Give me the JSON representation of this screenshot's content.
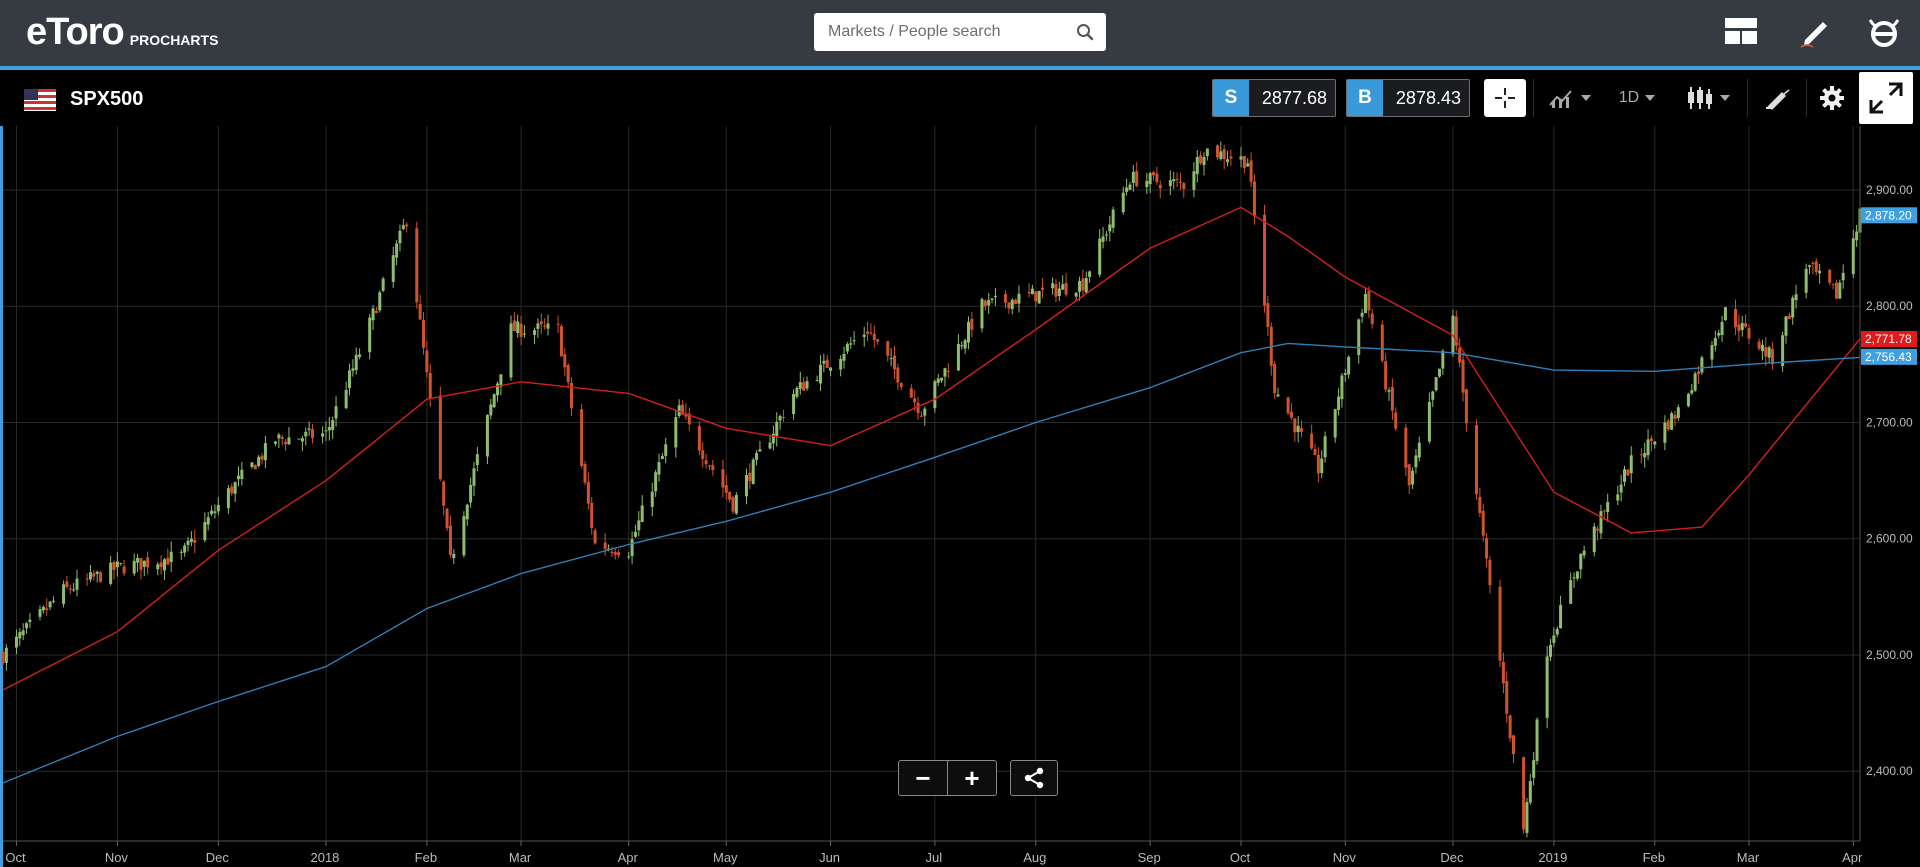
{
  "brand": {
    "logo_text": "eToro",
    "product": "PROCHARTS"
  },
  "search": {
    "placeholder": "Markets / People search",
    "value": ""
  },
  "header_icons": [
    "layout-icon",
    "edit-pencil-icon",
    "etoro-app-icon"
  ],
  "instrument": {
    "symbol": "SPX500",
    "flag": "us-flag-icon"
  },
  "sell": {
    "tag": "S",
    "price": "2877.68"
  },
  "buy": {
    "tag": "B",
    "price": "2878.43"
  },
  "toolbar": {
    "timeframe": "1D",
    "icons": [
      "crosshair-icon",
      "indicators-icon",
      "candlestick-icon",
      "drawing-tools-icon",
      "settings-gear-icon",
      "fullscreen-icon"
    ]
  },
  "zoom": {
    "minus": "−",
    "plus": "+",
    "share_icon": "share-icon"
  },
  "colors": {
    "accent": "#3ea0e0",
    "bull": "#8fbc6f",
    "bear": "#d0532f",
    "ma_short": "#d21f1f",
    "ma_long": "#2f7fb8",
    "topbar": "#363b42"
  },
  "chart_data": {
    "type": "line",
    "title": "",
    "candlestick": true,
    "grid": true,
    "ylim": [
      2340,
      2955
    ],
    "y_ticks": [
      "2,400.00",
      "2,500.00",
      "2,600.00",
      "2,700.00",
      "2,800.00",
      "2,900.00"
    ],
    "y_tick_values": [
      2400,
      2500,
      2600,
      2700,
      2800,
      2900
    ],
    "x_ticks": [
      "Oct",
      "Nov",
      "Dec",
      "2018",
      "Feb",
      "Mar",
      "Apr",
      "May",
      "Jun",
      "Jul",
      "Aug",
      "Sep",
      "Oct",
      "Nov",
      "Dec",
      "2019",
      "Feb",
      "Mar",
      "Apr"
    ],
    "x_tick_dates": [
      "2017-10-02",
      "2017-11-01",
      "2017-12-01",
      "2018-01-02",
      "2018-02-01",
      "2018-03-01",
      "2018-04-02",
      "2018-05-01",
      "2018-06-01",
      "2018-07-02",
      "2018-08-01",
      "2018-09-04",
      "2018-10-01",
      "2018-11-01",
      "2018-12-03",
      "2019-01-02",
      "2019-02-01",
      "2019-03-01",
      "2019-04-01"
    ],
    "date_range": [
      "2017-09-28",
      "2019-04-03"
    ],
    "close_series": {
      "name": "SPX500",
      "dates": [
        "2017-09-28",
        "2017-10-16",
        "2017-11-01",
        "2017-11-20",
        "2017-12-04",
        "2017-12-18",
        "2018-01-02",
        "2018-01-12",
        "2018-01-26",
        "2018-02-08",
        "2018-02-26",
        "2018-03-12",
        "2018-03-23",
        "2018-04-02",
        "2018-04-17",
        "2018-05-03",
        "2018-05-21",
        "2018-06-12",
        "2018-06-28",
        "2018-07-16",
        "2018-08-01",
        "2018-08-15",
        "2018-08-29",
        "2018-09-14",
        "2018-09-20",
        "2018-10-03",
        "2018-10-11",
        "2018-10-24",
        "2018-11-07",
        "2018-11-20",
        "2018-12-03",
        "2018-12-10",
        "2018-12-24",
        "2018-12-31",
        "2019-01-10",
        "2019-01-25",
        "2019-02-08",
        "2019-02-22",
        "2019-03-08",
        "2019-03-18",
        "2019-03-27",
        "2019-04-03"
      ],
      "values": [
        2500,
        2555,
        2575,
        2585,
        2640,
        2685,
        2690,
        2760,
        2875,
        2580,
        2780,
        2780,
        2595,
        2590,
        2710,
        2630,
        2725,
        2780,
        2710,
        2800,
        2810,
        2820,
        2910,
        2905,
        2935,
        2925,
        2730,
        2660,
        2810,
        2645,
        2790,
        2640,
        2350,
        2505,
        2585,
        2665,
        2710,
        2795,
        2755,
        2835,
        2810,
        2880
      ]
    },
    "series": [
      {
        "name": "",
        "color": "#d21f1f",
        "dates": [
          "2017-09-28",
          "2017-11-01",
          "2017-12-01",
          "2018-01-02",
          "2018-02-01",
          "2018-03-01",
          "2018-04-02",
          "2018-05-01",
          "2018-06-01",
          "2018-07-02",
          "2018-08-01",
          "2018-09-04",
          "2018-10-01",
          "2018-10-15",
          "2018-11-01",
          "2018-12-03",
          "2019-01-02",
          "2019-01-25",
          "2019-02-15",
          "2019-03-01",
          "2019-04-03"
        ],
        "values": [
          2470,
          2520,
          2590,
          2650,
          2720,
          2735,
          2725,
          2695,
          2680,
          2720,
          2780,
          2850,
          2885,
          2860,
          2825,
          2775,
          2640,
          2605,
          2610,
          2655,
          2772
        ]
      },
      {
        "name": "",
        "color": "#2f7fb8",
        "dates": [
          "2017-09-28",
          "2017-11-01",
          "2017-12-01",
          "2018-01-02",
          "2018-02-01",
          "2018-03-01",
          "2018-04-02",
          "2018-05-01",
          "2018-06-01",
          "2018-07-02",
          "2018-08-01",
          "2018-09-04",
          "2018-10-01",
          "2018-10-15",
          "2018-11-01",
          "2018-12-03",
          "2019-01-02",
          "2019-02-01",
          "2019-03-01",
          "2019-04-03"
        ],
        "values": [
          2390,
          2430,
          2460,
          2490,
          2540,
          2570,
          2595,
          2615,
          2640,
          2670,
          2700,
          2730,
          2760,
          2768,
          2765,
          2760,
          2745,
          2744,
          2750,
          2756
        ]
      }
    ],
    "price_labels": [
      {
        "text": "2,878.20",
        "value": 2878.2,
        "color": "#3ea0e0"
      },
      {
        "text": "2,771.78",
        "value": 2771.78,
        "color": "#e01a1a"
      },
      {
        "text": "2,756.43",
        "value": 2756.43,
        "color": "#3ea0e0"
      }
    ]
  }
}
